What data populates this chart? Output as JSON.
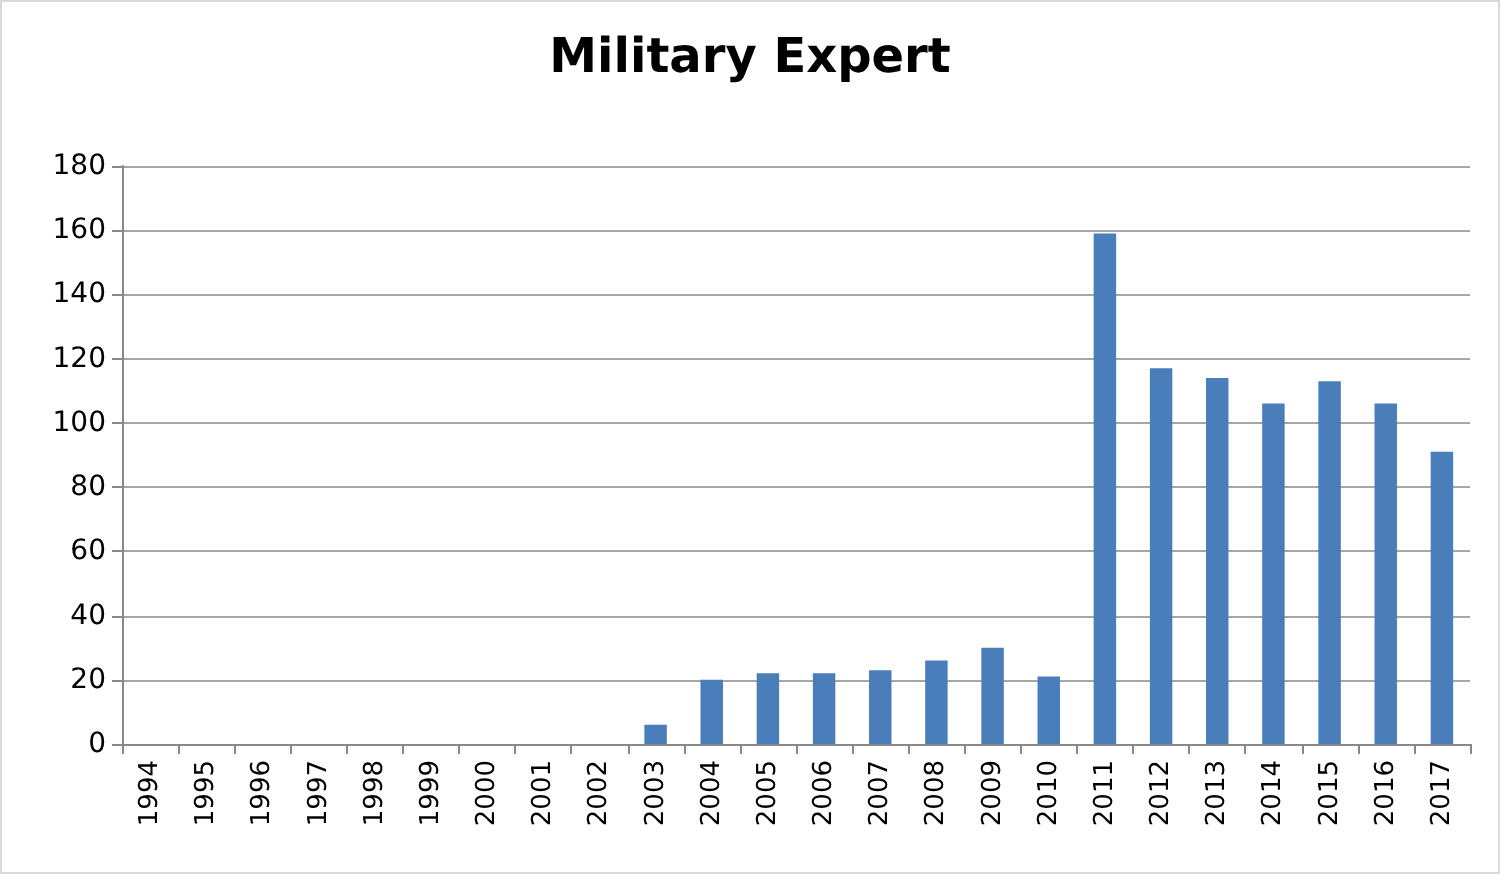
{
  "chart_data": {
    "type": "bar",
    "title": "Military Expert",
    "categories": [
      "1994",
      "1995",
      "1996",
      "1997",
      "1998",
      "1999",
      "2000",
      "2001",
      "2002",
      "2003",
      "2004",
      "2005",
      "2006",
      "2007",
      "2008",
      "2009",
      "2010",
      "2011",
      "2012",
      "2013",
      "2014",
      "2015",
      "2016",
      "2017"
    ],
    "values": [
      0,
      0,
      0,
      0,
      0,
      0,
      0,
      0,
      0,
      6,
      20,
      22,
      22,
      23,
      26,
      30,
      21,
      159,
      117,
      114,
      106,
      113,
      106,
      91
    ],
    "color": "#4a7ebb",
    "ylim": [
      0,
      180
    ],
    "yticks": [
      0,
      20,
      40,
      60,
      80,
      100,
      120,
      140,
      160,
      180
    ],
    "grid": "y"
  }
}
